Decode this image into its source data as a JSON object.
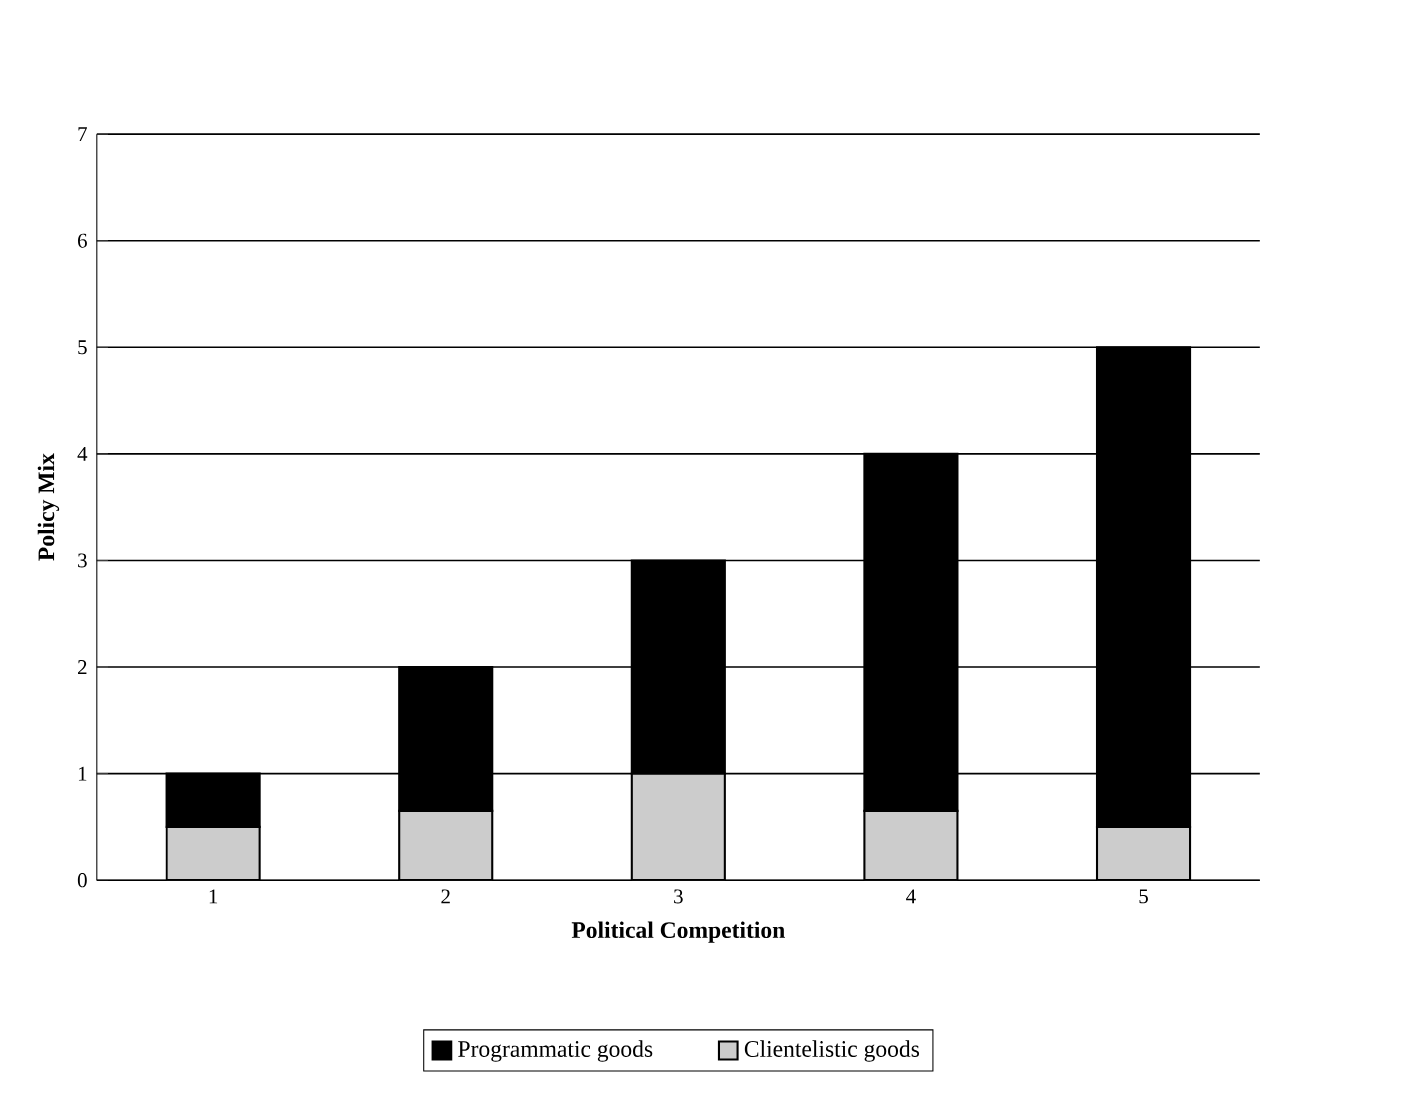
{
  "chart_data": {
    "type": "bar",
    "stacked": true,
    "xlabel": "Political Competition",
    "ylabel": "Policy Mix",
    "categories": [
      "1",
      "2",
      "3",
      "4",
      "5"
    ],
    "series": [
      {
        "name": "Clientelistic goods",
        "color": "#cccccc",
        "values": [
          0.5,
          0.65,
          1.0,
          0.65,
          0.5
        ]
      },
      {
        "name": "Programmatic goods",
        "color": "#000000",
        "values": [
          0.5,
          1.35,
          2.0,
          3.35,
          4.5
        ]
      }
    ],
    "ylim": [
      0,
      7
    ],
    "yticks": [
      0,
      1,
      2,
      3,
      4,
      5,
      6,
      7
    ],
    "grid": "y",
    "legend": "bottom"
  }
}
